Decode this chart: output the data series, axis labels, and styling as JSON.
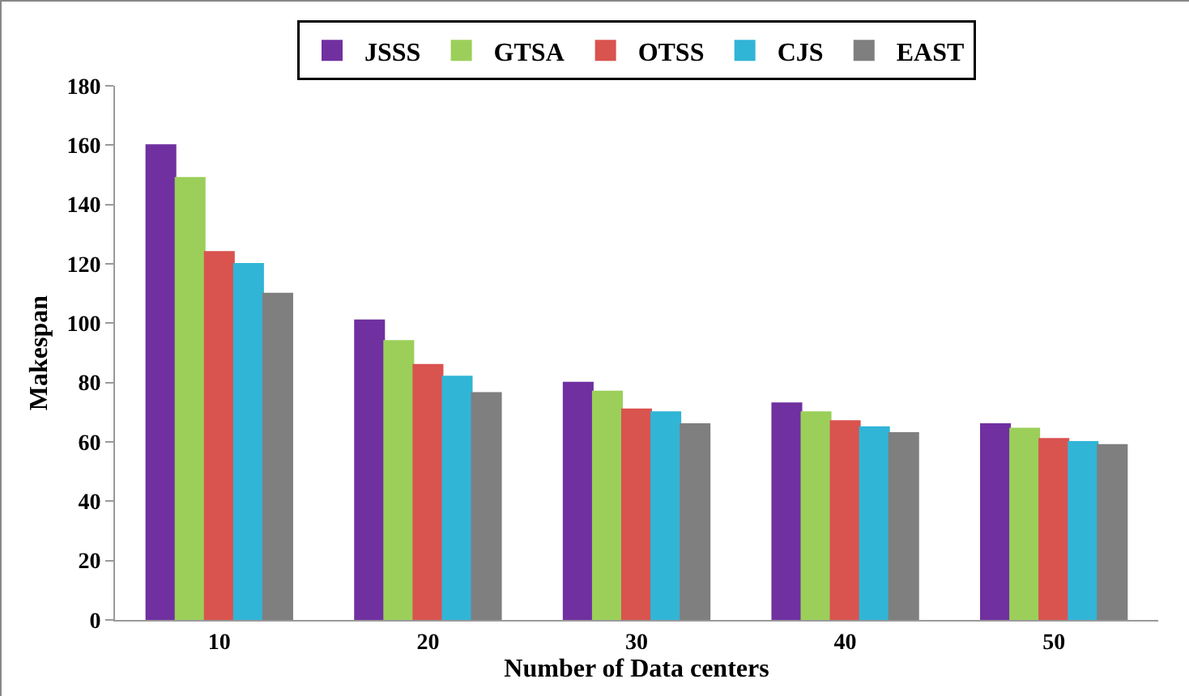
{
  "chart_data": {
    "type": "bar",
    "xlabel": "Number of Data centers",
    "ylabel": "Makespan",
    "categories": [
      "10",
      "20",
      "30",
      "40",
      "50"
    ],
    "series": [
      {
        "name": "JSSS",
        "color": "#7030a0",
        "values": [
          160,
          101,
          80,
          73,
          66
        ]
      },
      {
        "name": "GTSA",
        "color": "#9bcf5a",
        "values": [
          149,
          94,
          77,
          70,
          64.5
        ]
      },
      {
        "name": "OTSS",
        "color": "#d9534f",
        "values": [
          124,
          86,
          71,
          67,
          61
        ]
      },
      {
        "name": "CJS",
        "color": "#31b5d6",
        "values": [
          120,
          82,
          70,
          65,
          60
        ]
      },
      {
        "name": "EAST",
        "color": "#7f7f7f",
        "values": [
          110,
          76.5,
          66,
          63,
          59
        ]
      }
    ],
    "ylim": [
      0,
      180
    ],
    "yticks": [
      0,
      20,
      40,
      60,
      80,
      100,
      120,
      140,
      160,
      180
    ],
    "grid": false,
    "legend": "top"
  }
}
